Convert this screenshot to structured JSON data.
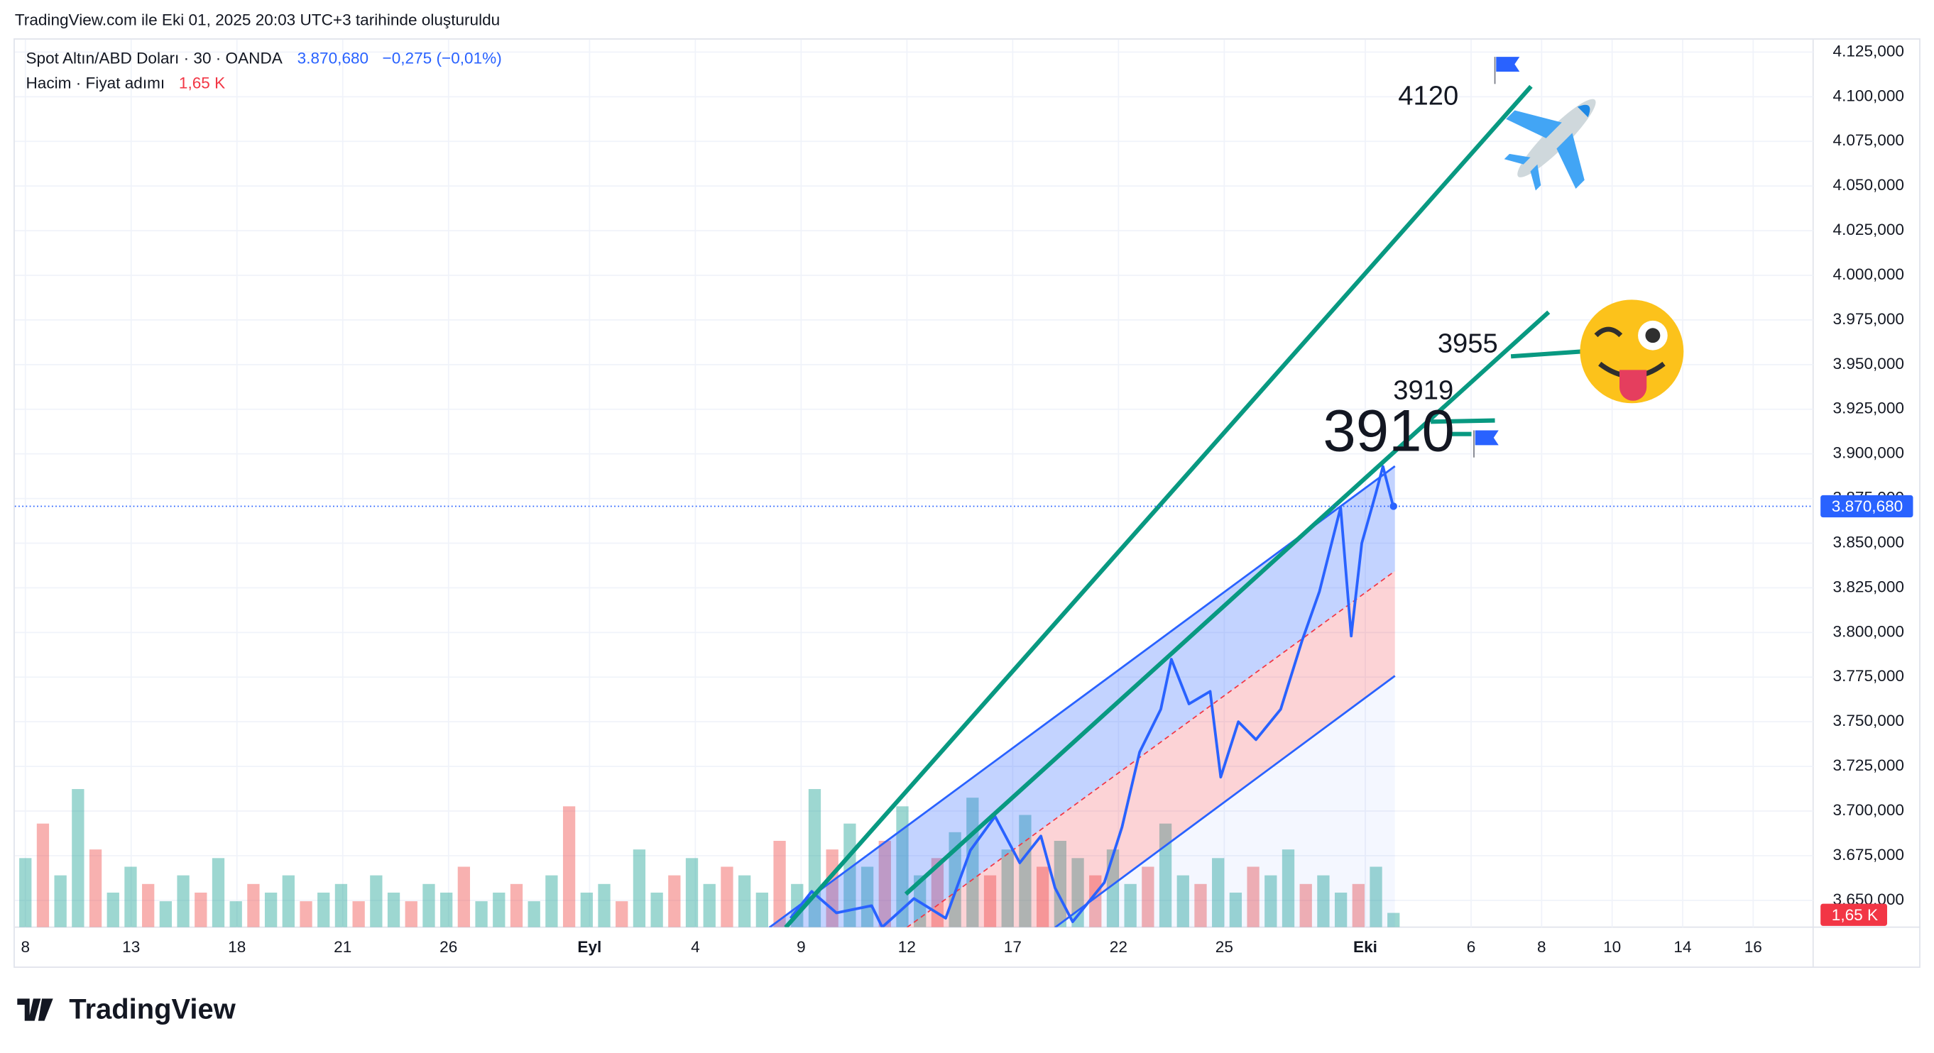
{
  "header": {
    "credit": "TradingView.com ile Eki 01, 2025 20:03 UTC+3 tarihinde oluşturuldu"
  },
  "legend": {
    "symbol": "Spot Altın/ABD Doları · 30 · OANDA",
    "price": "3.870,680",
    "change": "−0,275 (−0,01%)",
    "volume_name": "Hacim · Fiyat adımı",
    "volume_value": "1,65 K"
  },
  "footer": {
    "logo": "TradingView"
  },
  "chart_data": {
    "type": "line",
    "ylim": [
      3635,
      4132
    ],
    "yticks": [
      {
        "value": 4125,
        "label": "4.125,000"
      },
      {
        "value": 4100,
        "label": "4.100,000"
      },
      {
        "value": 4075,
        "label": "4.075,000"
      },
      {
        "value": 4050,
        "label": "4.050,000"
      },
      {
        "value": 4025,
        "label": "4.025,000"
      },
      {
        "value": 4000,
        "label": "4.000,000"
      },
      {
        "value": 3975,
        "label": "3.975,000"
      },
      {
        "value": 3950,
        "label": "3.950,000"
      },
      {
        "value": 3925,
        "label": "3.925,000"
      },
      {
        "value": 3900,
        "label": "3.900,000"
      },
      {
        "value": 3875,
        "label": "3.875,000"
      },
      {
        "value": 3850,
        "label": "3.850,000"
      },
      {
        "value": 3825,
        "label": "3.825,000"
      },
      {
        "value": 3800,
        "label": "3.800,000"
      },
      {
        "value": 3775,
        "label": "3.775,000"
      },
      {
        "value": 3750,
        "label": "3.750,000"
      },
      {
        "value": 3725,
        "label": "3.725,000"
      },
      {
        "value": 3700,
        "label": "3.700,000"
      },
      {
        "value": 3675,
        "label": "3.675,000"
      },
      {
        "value": 3650,
        "label": "3.650,000"
      }
    ],
    "xlim": [
      -0.3,
      50.7
    ],
    "xticks": [
      0,
      3,
      6,
      9,
      12,
      {
        "value": 16,
        "label": "Eyl"
      },
      {
        "value": 19,
        "label": "4"
      },
      {
        "value": 22,
        "label": "9"
      },
      {
        "value": 25,
        "label": "12"
      },
      {
        "value": 28,
        "label": "17"
      },
      {
        "value": 31,
        "label": "22"
      },
      {
        "value": 34,
        "label": "25"
      },
      {
        "value": 38,
        "label": "Eki"
      },
      {
        "value": 41,
        "label": "6"
      },
      {
        "value": 43,
        "label": "8"
      },
      {
        "value": 45,
        "label": "10"
      },
      {
        "value": 47,
        "label": "14"
      },
      {
        "value": 49,
        "label": "16"
      }
    ],
    "xtick_labels": [
      "8",
      "13",
      "18",
      "21",
      "26"
    ],
    "grid": true,
    "series": [
      {
        "name": "Spot Altın/ABD Doları",
        "color": "#2962ff",
        "x": [
          21.7,
          22.3,
          23.0,
          24.0,
          24.3,
          25.2,
          26.1,
          26.8,
          27.5,
          28.2,
          28.8,
          29.2,
          29.7,
          30.6,
          31.1,
          31.6,
          32.2,
          32.5,
          33.0,
          33.6,
          33.9,
          34.4,
          34.9,
          35.6,
          36.2,
          36.7,
          37.3,
          37.6,
          37.9,
          38.3,
          38.5,
          38.8
        ],
        "values": [
          3640,
          3655,
          3643,
          3647,
          3635,
          3651,
          3640,
          3678,
          3697,
          3671,
          3686,
          3657,
          3638,
          3660,
          3691,
          3733,
          3757,
          3785,
          3760,
          3767,
          3719,
          3750,
          3740,
          3757,
          3795,
          3823,
          3870,
          3798,
          3850,
          3878,
          3893,
          3870
        ]
      }
    ],
    "last_price": {
      "value": 3870.68,
      "label": "3.870,680"
    },
    "volume": {
      "color_up": "#26a69a",
      "color_down": "#ef5350",
      "vlim": [
        0,
        20
      ],
      "last_label": "1,65 K",
      "values": [
        8,
        12,
        6,
        16,
        9,
        4,
        7,
        5,
        3,
        6,
        4,
        8,
        3,
        5,
        4,
        6,
        3,
        4,
        5,
        3,
        6,
        4,
        3,
        5,
        4,
        7,
        3,
        4,
        5,
        3,
        6,
        14,
        4,
        5,
        3,
        9,
        4,
        6,
        8,
        5,
        7,
        6,
        4,
        10,
        5,
        16,
        9,
        12,
        7,
        10,
        14,
        6,
        8,
        11,
        15,
        6,
        9,
        13,
        7,
        10,
        8,
        6,
        9,
        5,
        7,
        12,
        6,
        5,
        8,
        4,
        7,
        6,
        9,
        5,
        6,
        4,
        5,
        7,
        1.65
      ]
    },
    "channel": {
      "upper": [
        [
          21.1,
          3634.8
        ],
        [
          38.84,
          3893.1
        ]
      ],
      "middle": [
        [
          25.0,
          3634.8
        ],
        [
          38.84,
          3834.4
        ]
      ],
      "lower": [
        [
          29.2,
          3634.8
        ],
        [
          38.84,
          3775.7
        ]
      ],
      "color": "#2962ff",
      "mid_color": "#f23645"
    },
    "trendlines": {
      "color": "#089981",
      "lines": [
        [
          [
            21.56,
            3634.8
          ],
          [
            42.7,
            4105.8
          ]
        ],
        [
          [
            24.97,
            3653.5
          ],
          [
            43.2,
            3979.4
          ]
        ]
      ]
    },
    "annotations": [
      "4120",
      "3955",
      "3919",
      "3910"
    ]
  }
}
